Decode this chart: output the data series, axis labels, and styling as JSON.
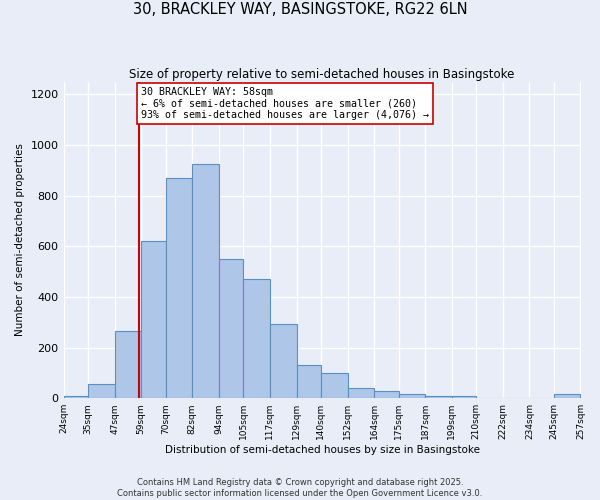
{
  "title": "30, BRACKLEY WAY, BASINGSTOKE, RG22 6LN",
  "subtitle": "Size of property relative to semi-detached houses in Basingstoke",
  "xlabel": "Distribution of semi-detached houses by size in Basingstoke",
  "ylabel": "Number of semi-detached properties",
  "bin_edges": [
    24,
    35,
    47,
    59,
    70,
    82,
    94,
    105,
    117,
    129,
    140,
    152,
    164,
    175,
    187,
    199,
    210,
    222,
    234,
    245,
    257
  ],
  "bar_heights": [
    10,
    55,
    265,
    620,
    870,
    925,
    550,
    470,
    295,
    130,
    100,
    40,
    30,
    15,
    10,
    10,
    0,
    0,
    0,
    15
  ],
  "bar_color": "#aec6e8",
  "bar_edge_color": "#5a8fc2",
  "property_line_x": 58,
  "property_line_color": "#cc0000",
  "annotation_text": "30 BRACKLEY WAY: 58sqm\n← 6% of semi-detached houses are smaller (260)\n93% of semi-detached houses are larger (4,076) →",
  "annotation_box_color": "#ffffff",
  "annotation_box_edge": "#cc0000",
  "ylim": [
    0,
    1250
  ],
  "yticks": [
    0,
    200,
    400,
    600,
    800,
    1000,
    1200
  ],
  "background_color": "#e8edf8",
  "grid_color": "#ffffff",
  "footer_line1": "Contains HM Land Registry data © Crown copyright and database right 2025.",
  "footer_line2": "Contains public sector information licensed under the Open Government Licence v3.0."
}
